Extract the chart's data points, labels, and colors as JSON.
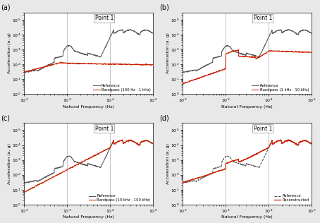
{
  "figure_bg": "#e8e8e8",
  "axes_bg": "#ffffff",
  "ref_color": "#555555",
  "band_color": "#cc2200",
  "xlim": [
    100,
    100000
  ],
  "ylim": [
    1,
    300000
  ],
  "panels": [
    {
      "label": "(a)",
      "title": "Point 1",
      "legend": [
        "Reference",
        "Bandpass (100 Hz - 1 kHz)"
      ],
      "vlines": [
        1000,
        10000
      ]
    },
    {
      "label": "(b)",
      "title": "Point 1",
      "legend": [
        "Reference",
        "Bandpass (1 kHz - 10 kHz)"
      ],
      "vlines": [
        1000,
        10000
      ]
    },
    {
      "label": "(c)",
      "title": "Point 1",
      "legend": [
        "Reference",
        "Bandpass (10 kHz - 100 kHz)"
      ],
      "vlines": [
        1000,
        10000
      ]
    },
    {
      "label": "(d)",
      "title": "Point 1",
      "legend": [
        "Reference",
        "Reconstructed"
      ],
      "vlines": [
        1000,
        10000
      ]
    }
  ],
  "xlabel": "Natural Frequency (Hz)",
  "ylabel": "Acceleration (a, g)"
}
